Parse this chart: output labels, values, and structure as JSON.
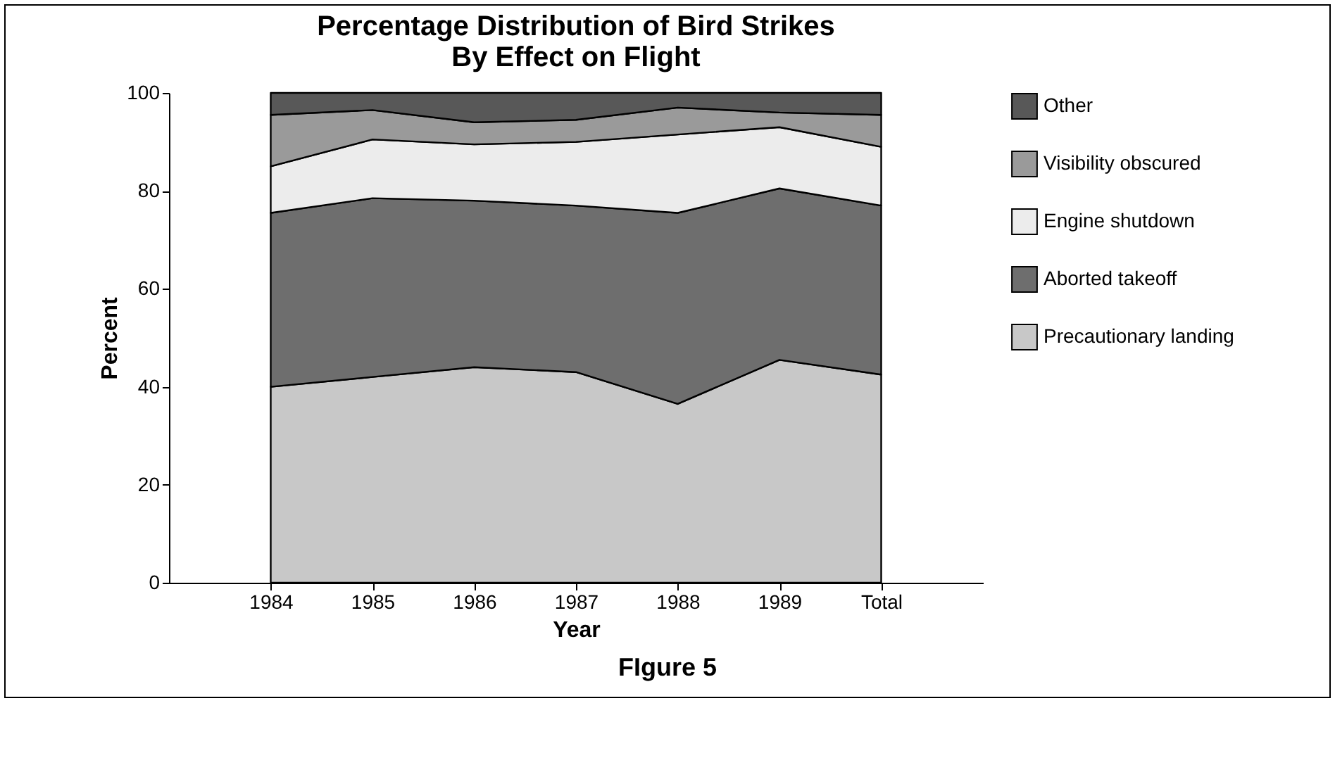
{
  "chart_data": {
    "type": "area",
    "title": "Percentage Distribution of Bird Strikes\nBy Effect on Flight",
    "xlabel": "Year",
    "ylabel": "Percent",
    "annotations": [
      "FIgure 5"
    ],
    "categories": [
      "1984",
      "1985",
      "1986",
      "1987",
      "1988",
      "1989",
      "Total"
    ],
    "stacked": true,
    "ylim": [
      0,
      100
    ],
    "yticks": [
      0,
      20,
      40,
      60,
      80,
      100
    ],
    "grid": false,
    "legend": "right",
    "series": [
      {
        "name": "Precautionary landing",
        "color": "#c8c8c8",
        "values": [
          40,
          42,
          44,
          43,
          36.5,
          45.5,
          42.5
        ]
      },
      {
        "name": "Aborted takeoff",
        "color": "#6e6e6e",
        "values": [
          35.5,
          36.5,
          34,
          34,
          39,
          35,
          34.5
        ]
      },
      {
        "name": "Engine shutdown",
        "color": "#ececec",
        "values": [
          9.5,
          12,
          11.5,
          13,
          16,
          12.5,
          12
        ]
      },
      {
        "name": "Visibility obscured",
        "color": "#9a9a9a",
        "values": [
          10.5,
          6,
          4.5,
          4.5,
          5.5,
          3,
          6.5
        ]
      },
      {
        "name": "Other",
        "color": "#585858",
        "values": [
          4.5,
          3.5,
          6,
          5.5,
          3,
          4,
          4.5
        ]
      }
    ]
  }
}
